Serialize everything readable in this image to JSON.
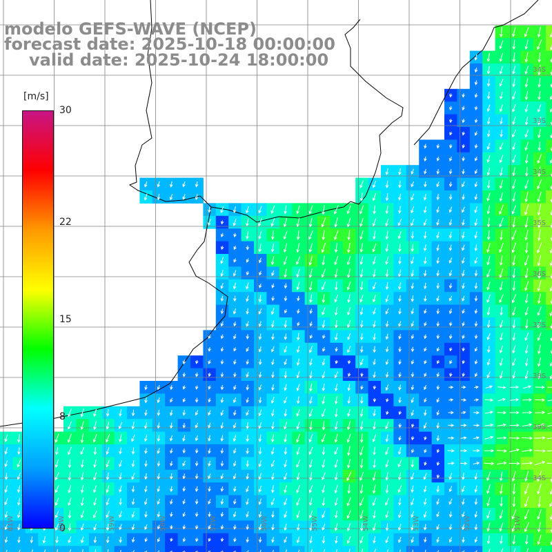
{
  "title": {
    "line1": "modelo GEFS-WAVE (NCEP)",
    "line2": "forecast date: 2025-10-18 00:00:00",
    "line3": "valid date: 2025-10-24 18:00:00"
  },
  "colorbar": {
    "unit": "[m/s]",
    "min": 0,
    "max": 30,
    "ticks": [
      "30",
      "22",
      "15",
      "8",
      "0"
    ],
    "tick_values": [
      30,
      22,
      15,
      8,
      0
    ],
    "colors": [
      "#0000ff",
      "#00a0ff",
      "#00ffff",
      "#00ff00",
      "#ffff00",
      "#ff9900",
      "#ff0000",
      "#c71585"
    ]
  },
  "field": {
    "calm_color": "#0047ff",
    "mid_color": "#00c8ff",
    "strong_color": "#00ff40",
    "land_color": "#ffffff",
    "coast_color": "#000000",
    "grid_color": "#808080",
    "arrow_color": "#ffffff"
  },
  "axes": {
    "lon_labels": [
      "61W",
      "60W",
      "59W",
      "58W",
      "57W",
      "56W",
      "55W",
      "54W",
      "53W",
      "52W",
      "51W"
    ],
    "lat_labels": [
      "34S",
      "33S",
      "34S",
      "35S",
      "36S",
      "37S",
      "38S",
      "39S",
      "34S"
    ]
  }
}
